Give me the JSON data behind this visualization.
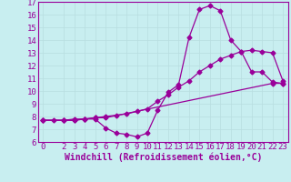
{
  "bg_color": "#c8eef0",
  "line_color": "#990099",
  "grid_color": "#b8dde0",
  "xlim": [
    -0.5,
    23.5
  ],
  "ylim": [
    6,
    17
  ],
  "xticks": [
    0,
    2,
    3,
    4,
    5,
    6,
    7,
    8,
    9,
    10,
    11,
    12,
    13,
    14,
    15,
    16,
    17,
    18,
    19,
    20,
    21,
    22,
    23
  ],
  "yticks": [
    6,
    7,
    8,
    9,
    10,
    11,
    12,
    13,
    14,
    15,
    16,
    17
  ],
  "xlabel": "Windchill (Refroidissement éolien,°C)",
  "line1_x": [
    0,
    1,
    2,
    3,
    4,
    5,
    6,
    7,
    8,
    9,
    10,
    11,
    12,
    13,
    14,
    15,
    16,
    17,
    18,
    19,
    20,
    21,
    22,
    23
  ],
  "line1_y": [
    7.7,
    7.7,
    7.7,
    7.7,
    7.8,
    7.8,
    7.1,
    6.7,
    6.6,
    6.4,
    6.7,
    8.5,
    9.9,
    10.5,
    14.2,
    16.4,
    16.7,
    16.3,
    14.0,
    13.1,
    11.5,
    11.5,
    10.7,
    10.6
  ],
  "line2_x": [
    0,
    2,
    3,
    4,
    5,
    6,
    7,
    8,
    9,
    10,
    11,
    12,
    13,
    14,
    15,
    16,
    17,
    18,
    19,
    20,
    21,
    22,
    23
  ],
  "line2_y": [
    7.7,
    7.7,
    7.8,
    7.8,
    7.9,
    8.0,
    8.1,
    8.2,
    8.4,
    8.6,
    9.2,
    9.7,
    10.3,
    10.8,
    11.5,
    12.0,
    12.5,
    12.8,
    13.1,
    13.2,
    13.1,
    13.0,
    10.8
  ],
  "line3_x": [
    0,
    2,
    3,
    4,
    5,
    6,
    22,
    23
  ],
  "line3_y": [
    7.7,
    7.7,
    7.7,
    7.8,
    7.9,
    7.9,
    10.6,
    10.6
  ],
  "font_size": 6.5,
  "xlabel_fontsize": 7,
  "marker": "D",
  "marker_size": 2.5,
  "lw": 0.9
}
